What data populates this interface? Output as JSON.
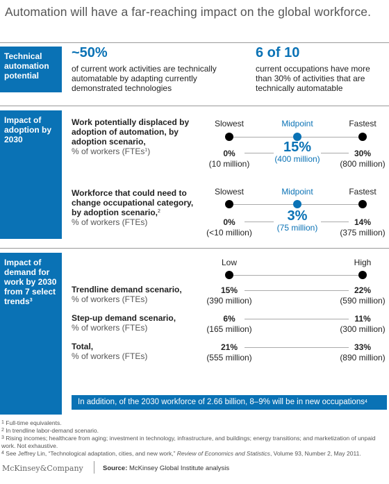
{
  "title": "Automation will have a far-reaching impact on the global workforce.",
  "section1": {
    "label": "Technical automation potential",
    "stat1": {
      "big": "~50%",
      "text": "of current work activities are technically automatable by adapting currently demonstrated technologies"
    },
    "stat2": {
      "big": "6 of 10",
      "text": "current occupations have more than 30% of activities that are technically automatable"
    }
  },
  "section2": {
    "label": "Impact of adoption by 2030",
    "col_slowest": "Slowest",
    "col_midpoint": "Midpoint",
    "col_fastest": "Fastest",
    "row1": {
      "title": "Work potentially displaced by adoption of automation, by adoption scenario,",
      "sub": "% of workers (FTEs",
      "sup": "1",
      "sub_end": ")"
    },
    "row2": {
      "title": "Workforce that could need to change occupational category, by adoption scenario,",
      "sup": "2",
      "sub": "% of workers (FTEs)"
    }
  },
  "section3": {
    "label": "Impact of demand for work by 2030 from 7 select trends",
    "label_sup": "3",
    "col_low": "Low",
    "col_high": "High",
    "rows": [
      {
        "title": "Trendline demand scenario,",
        "sub": "% of workers (FTEs)"
      },
      {
        "title": "Step-up demand scenario,",
        "sub": "% of workers (FTEs)"
      },
      {
        "title": "Total,",
        "sub": "% of workers (FTEs)"
      }
    ],
    "banner": "In addition, of the 2030 workforce of 2.66 billion, 8–9% will be in new occupations",
    "banner_sup": "4"
  },
  "footnotes": [
    {
      "n": "1",
      "text": "Full-time equivalents."
    },
    {
      "n": "2",
      "text": "In trendline labor-demand scenario."
    },
    {
      "n": "3",
      "text": "Rising incomes; healthcare from aging; investment in technology, infrastructure, and buildings; energy transitions; and marketization of unpaid work. Not exhaustive."
    },
    {
      "n": "4",
      "text_a": "See Jeffrey Lin, “Technological adaptation, cities, and new work,” ",
      "text_i": "Review of Economics and Statistics",
      "text_b": ", Volume 93, Number 2, May 2011."
    }
  ],
  "brand": "McKinsey&Company",
  "source_label": "Source:",
  "source_text": "McKinsey Global Institute analysis",
  "colors": {
    "accent": "#0a72b5",
    "dot": "#000000",
    "line": "#aaaaaa"
  },
  "chart_data": [
    {
      "type": "table",
      "title": "Work potentially displaced by adoption of automation, by adoption scenario",
      "unit": "% of workers (FTEs)",
      "categories": [
        "Slowest",
        "Midpoint",
        "Fastest"
      ],
      "values": [
        0,
        15,
        30
      ],
      "value_labels": [
        "0%",
        "15%",
        "30%"
      ],
      "counts": [
        "(10 million)",
        "(400 million)",
        "(800 million)"
      ]
    },
    {
      "type": "table",
      "title": "Workforce that could need to change occupational category, by adoption scenario",
      "unit": "% of workers (FTEs)",
      "categories": [
        "Slowest",
        "Midpoint",
        "Fastest"
      ],
      "values": [
        0,
        3,
        14
      ],
      "value_labels": [
        "0%",
        "3%",
        "14%"
      ],
      "counts": [
        "(<10 million)",
        "(75 million)",
        "(375 million)"
      ]
    },
    {
      "type": "table",
      "title": "Impact of demand for work by 2030 from 7 select trends",
      "categories": [
        "Low",
        "High"
      ],
      "series": [
        {
          "name": "Trendline demand scenario",
          "values": [
            15,
            22
          ],
          "value_labels": [
            "15%",
            "22%"
          ],
          "counts": [
            "(390 million)",
            "(590 million)"
          ]
        },
        {
          "name": "Step-up demand scenario",
          "values": [
            6,
            11
          ],
          "value_labels": [
            "6%",
            "11%"
          ],
          "counts": [
            "(165 million)",
            "(300 million)"
          ]
        },
        {
          "name": "Total",
          "values": [
            21,
            33
          ],
          "value_labels": [
            "21%",
            "33%"
          ],
          "counts": [
            "(555 million)",
            "(890 million)"
          ]
        }
      ]
    }
  ]
}
